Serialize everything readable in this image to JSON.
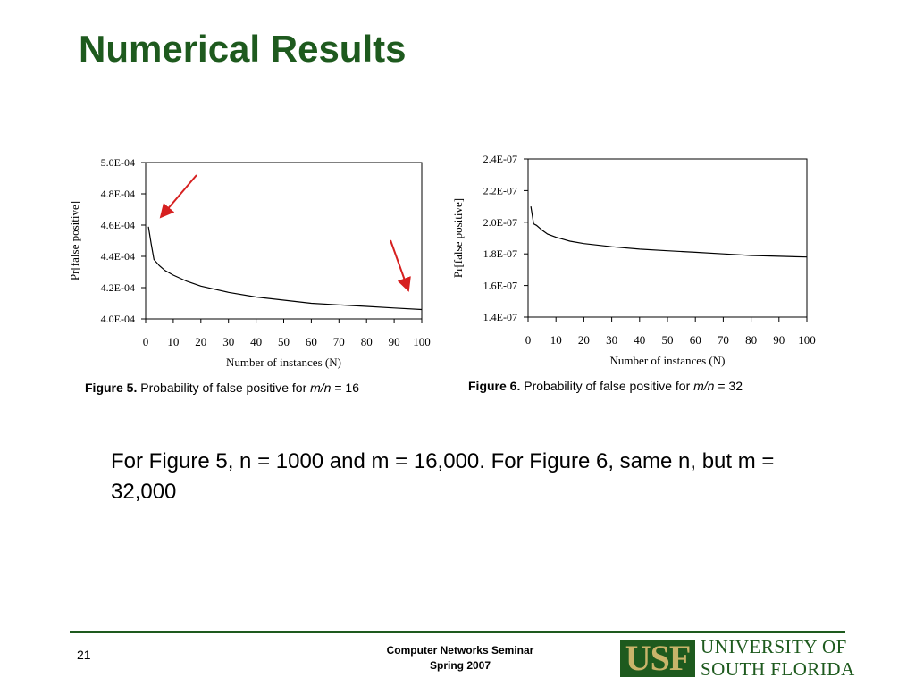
{
  "slide": {
    "title": "Numerical Results",
    "note": "For Figure 5, n = 1000 and m = 16,000. For Figure 6, same n, but m = 32,000",
    "page_number": "21",
    "footer_line1": "Computer Networks Seminar",
    "footer_line2": "Spring 2007",
    "logo_mark": "USF",
    "logo_line1": "UNIVERSITY OF",
    "logo_line2": "SOUTH FLORIDA",
    "brand_color": "#1e5a1e",
    "arrow_color": "#d62020"
  },
  "captions": [
    {
      "label": "Figure 5.",
      "text": "Probability of false positive for",
      "var": "m/n",
      "value": "= 16"
    },
    {
      "label": "Figure 6.",
      "text": "Probability of false positive for",
      "var": "m/n",
      "value": "= 32"
    }
  ],
  "chart_data": [
    {
      "type": "line",
      "xlabel": "Number of instances (N)",
      "ylabel": "Pr[false positive]",
      "x_ticks": [
        0,
        10,
        20,
        30,
        40,
        50,
        60,
        70,
        80,
        90,
        100
      ],
      "y_ticks": [
        0.0004,
        0.00042,
        0.00044,
        0.00046,
        0.00048,
        0.0005
      ],
      "y_tick_labels": [
        "4.0E-04",
        "4.2E-04",
        "4.4E-04",
        "4.6E-04",
        "4.8E-04",
        "5.0E-04"
      ],
      "xlim": [
        0,
        100
      ],
      "ylim": [
        0.0004,
        0.0005
      ],
      "grid": false,
      "series": [
        {
          "x": [
            1,
            2,
            3,
            5,
            7,
            10,
            15,
            20,
            30,
            40,
            50,
            60,
            70,
            80,
            90,
            100
          ],
          "y": [
            0.000459,
            0.000448,
            0.000438,
            0.000434,
            0.000431,
            0.000428,
            0.000424,
            0.000421,
            0.000417,
            0.000414,
            0.000412,
            0.00041,
            0.000409,
            0.000408,
            0.000407,
            0.000406
          ]
        }
      ],
      "annotations": [
        "arrow",
        "arrow"
      ]
    },
    {
      "type": "line",
      "xlabel": "Number of instances (N)",
      "ylabel": "Pr[false positive]",
      "x_ticks": [
        0,
        10,
        20,
        30,
        40,
        50,
        60,
        70,
        80,
        90,
        100
      ],
      "y_ticks": [
        1.4e-07,
        1.6e-07,
        1.8e-07,
        2e-07,
        2.2e-07,
        2.4e-07
      ],
      "y_tick_labels": [
        "1.4E-07",
        "1.6E-07",
        "1.8E-07",
        "2.0E-07",
        "2.2E-07",
        "2.4E-07"
      ],
      "xlim": [
        0,
        100
      ],
      "ylim": [
        1.4e-07,
        2.4e-07
      ],
      "grid": false,
      "series": [
        {
          "x": [
            1,
            2,
            3,
            5,
            7,
            10,
            15,
            20,
            30,
            40,
            50,
            60,
            70,
            80,
            90,
            100
          ],
          "y": [
            2.1e-07,
            1.99e-07,
            1.98e-07,
            1.95e-07,
            1.925e-07,
            1.905e-07,
            1.88e-07,
            1.865e-07,
            1.845e-07,
            1.83e-07,
            1.82e-07,
            1.81e-07,
            1.8e-07,
            1.79e-07,
            1.785e-07,
            1.78e-07
          ]
        }
      ]
    }
  ]
}
